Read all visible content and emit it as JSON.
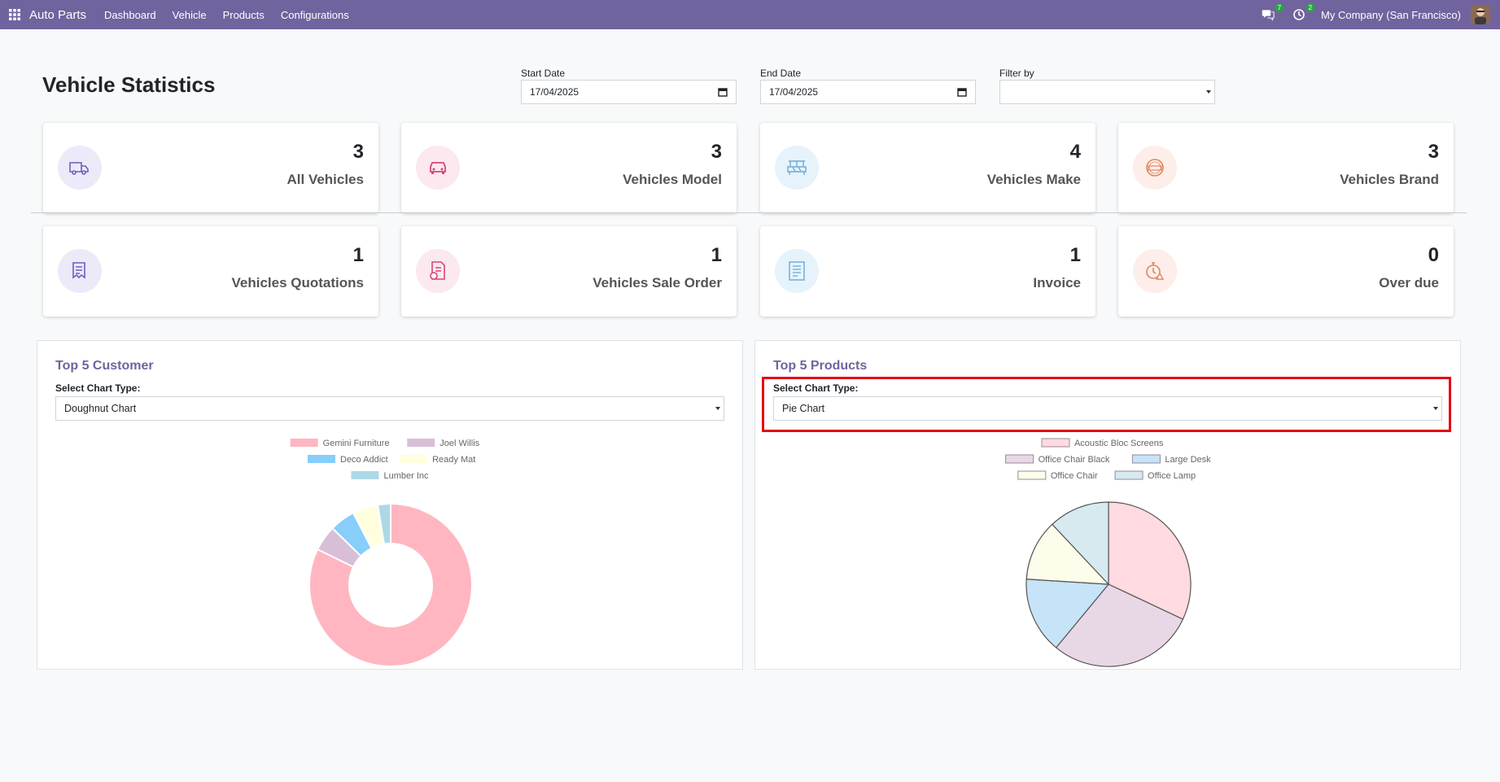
{
  "navbar": {
    "app_name": "Auto Parts",
    "menu": [
      "Dashboard",
      "Vehicle",
      "Products",
      "Configurations"
    ],
    "messages_count": "7",
    "activities_count": "2",
    "company": "My Company (San Francisco)"
  },
  "page": {
    "title": "Vehicle Statistics",
    "start_date_label": "Start Date",
    "start_date_value": "17/04/2025",
    "end_date_label": "End Date",
    "end_date_value": "17/04/2025",
    "filter_label": "Filter by",
    "filter_value": ""
  },
  "stats": [
    {
      "value": "3",
      "label": "All Vehicles",
      "icon": "truck-icon",
      "bg": "#eceaf8",
      "color": "#6a5fc1"
    },
    {
      "value": "3",
      "label": "Vehicles Model",
      "icon": "car-icon",
      "bg": "#fce8ef",
      "color": "#d6457a"
    },
    {
      "value": "4",
      "label": "Vehicles Make",
      "icon": "factory-icon",
      "bg": "#e6f3fb",
      "color": "#6aa9d8"
    },
    {
      "value": "3",
      "label": "Vehicles Brand",
      "icon": "brand-stamp-icon",
      "bg": "#fdeeea",
      "color": "#e0865f"
    },
    {
      "value": "1",
      "label": "Vehicles Quotations",
      "icon": "quotation-icon",
      "bg": "#eceaf8",
      "color": "#6a5fc1"
    },
    {
      "value": "1",
      "label": "Vehicles Sale Order",
      "icon": "sale-order-icon",
      "bg": "#fce8ef",
      "color": "#d6457a"
    },
    {
      "value": "1",
      "label": "Invoice",
      "icon": "invoice-icon",
      "bg": "#e6f3fb",
      "color": "#6aa9d8"
    },
    {
      "value": "0",
      "label": "Over due",
      "icon": "overdue-timer-icon",
      "bg": "#fdeeea",
      "color": "#e0865f"
    }
  ],
  "customers_chart": {
    "title": "Top 5 Customer",
    "select_label": "Select Chart Type:",
    "select_value": "Doughnut Chart"
  },
  "products_chart": {
    "title": "Top 5 Products",
    "select_label": "Select Chart Type:",
    "select_value": "Pie Chart"
  },
  "chart_data": [
    {
      "type": "pie",
      "variant": "doughnut",
      "categories": [
        "Gemini Furniture",
        "Joel Willis",
        "Deco Addict",
        "Ready Mat",
        "Lumber Inc"
      ],
      "values": [
        81,
        5,
        5,
        5,
        2.5
      ],
      "colors": [
        "#ffb6c1",
        "#d8bfd8",
        "#87cefa",
        "#ffffe0",
        "#add8e6"
      ],
      "legend": "top"
    },
    {
      "type": "pie",
      "categories": [
        "Acoustic Bloc Screens",
        "Office Chair Black",
        "Large Desk",
        "Office Chair",
        "Office Lamp"
      ],
      "values": [
        32,
        29,
        15,
        12,
        12
      ],
      "colors": [
        "#ffdae0",
        "#e8d8e6",
        "#c6e3f8",
        "#fdfdeb",
        "#d6eaf0"
      ],
      "legend": "top"
    }
  ]
}
